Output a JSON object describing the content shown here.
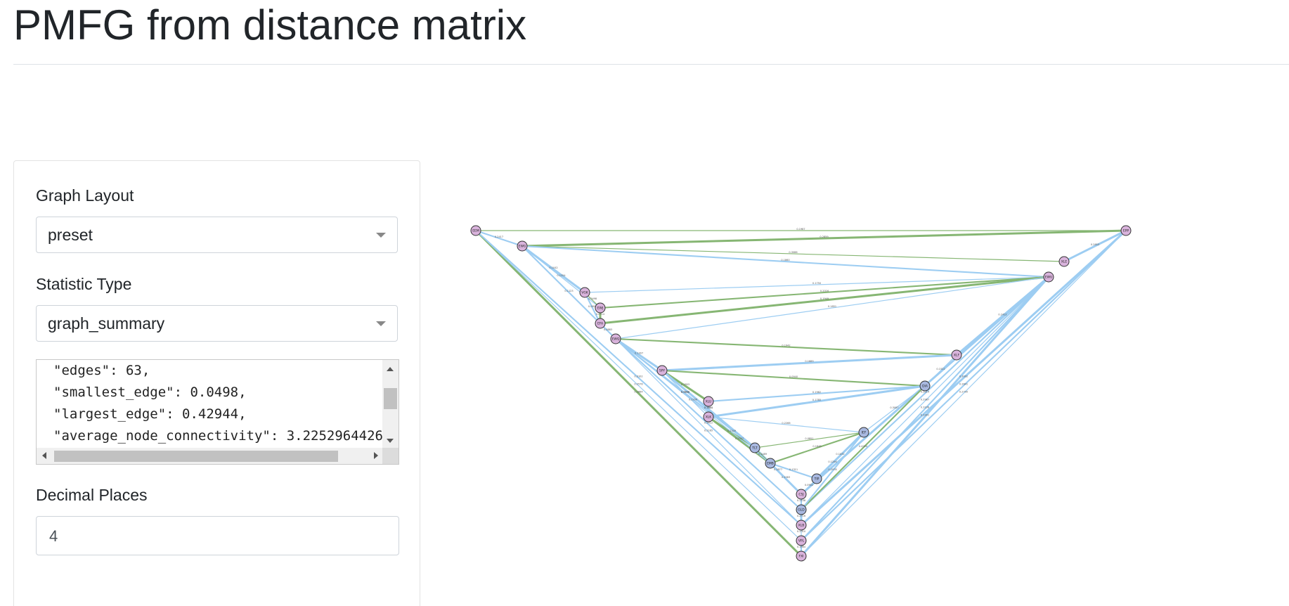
{
  "page": {
    "title": "PMFG from distance matrix"
  },
  "controls": {
    "graph_layout": {
      "label": "Graph Layout",
      "value": "preset"
    },
    "statistic_type": {
      "label": "Statistic Type",
      "value": "graph_summary"
    },
    "stats_lines": [
      "\"edges\": 63,",
      "\"smallest_edge\": 0.0498,",
      "\"largest_edge\": 0.42944,",
      "\"average_node_connectivity\": 3.2252964426"
    ],
    "decimal_places": {
      "label": "Decimal Places",
      "value": "4"
    }
  },
  "graph": {
    "colors": {
      "edge_blue": "#9dcdf2",
      "edge_green": "#86b673",
      "node_pink": "#d9b3dc",
      "node_blue": "#a8b8e0"
    },
    "nodes": [
      {
        "id": "EEM",
        "c": "pink"
      },
      {
        "id": "EWG",
        "c": "pink"
      },
      {
        "id": "EPP",
        "c": "pink"
      },
      {
        "id": "XLE",
        "c": "pink"
      },
      {
        "id": "EWU",
        "c": "pink"
      },
      {
        "id": "VGK",
        "c": "pink"
      },
      {
        "id": "EWJ",
        "c": "pink"
      },
      {
        "id": "EFA",
        "c": "pink"
      },
      {
        "id": "EWQ",
        "c": "pink"
      },
      {
        "id": "XLF",
        "c": "pink"
      },
      {
        "id": "SPY",
        "c": "pink"
      },
      {
        "id": "DIA",
        "c": "blue"
      },
      {
        "id": "XLU",
        "c": "pink"
      },
      {
        "id": "XLK",
        "c": "pink"
      },
      {
        "id": "IEF",
        "c": "blue"
      },
      {
        "id": "TLT",
        "c": "blue"
      },
      {
        "id": "EMB",
        "c": "blue"
      },
      {
        "id": "TIP",
        "c": "blue"
      },
      {
        "id": "CSJ",
        "c": "pink"
      },
      {
        "id": "GLD",
        "c": "blue"
      },
      {
        "id": "XLB",
        "c": "pink"
      },
      {
        "id": "VPL",
        "c": "pink"
      },
      {
        "id": "FXI",
        "c": "pink"
      }
    ],
    "edges": [
      {
        "s": "EEM",
        "t": "EPP",
        "w": "0.1987",
        "c": "green"
      },
      {
        "s": "EEM",
        "t": "EWG",
        "w": "0.2417",
        "c": "blue"
      },
      {
        "s": "EEM",
        "t": "FXI",
        "w": "0.2884",
        "c": "green"
      },
      {
        "s": "EEM",
        "t": "VPL",
        "w": "0.2576",
        "c": "blue"
      },
      {
        "s": "EEM",
        "t": "XLB",
        "w": "0.3102",
        "c": "blue"
      },
      {
        "s": "EWG",
        "t": "EPP",
        "w": "0.2859",
        "c": "green"
      },
      {
        "s": "EWG",
        "t": "XLE",
        "w": "0.3086",
        "c": "green"
      },
      {
        "s": "EWG",
        "t": "EWU",
        "w": "0.1860",
        "c": "blue"
      },
      {
        "s": "EWG",
        "t": "VGK",
        "w": "0.1042",
        "c": "blue"
      },
      {
        "s": "EWG",
        "t": "EWJ",
        "w": "0.1254",
        "c": "blue"
      },
      {
        "s": "EWG",
        "t": "EWQ",
        "w": "0.1123",
        "c": "blue"
      },
      {
        "s": "EPP",
        "t": "XLE",
        "w": "0.2853",
        "c": "blue"
      },
      {
        "s": "EPP",
        "t": "FXI",
        "w": "0.2790",
        "c": "blue"
      },
      {
        "s": "EPP",
        "t": "VPL",
        "w": "0.2641",
        "c": "blue"
      },
      {
        "s": "EPP",
        "t": "XLB",
        "w": "0.3002",
        "c": "blue"
      },
      {
        "s": "EWU",
        "t": "VGK",
        "w": "0.1750",
        "c": "blue"
      },
      {
        "s": "EWU",
        "t": "EWJ",
        "w": "0.2016",
        "c": "green"
      },
      {
        "s": "EWU",
        "t": "EFA",
        "w": "0.1949",
        "c": "green"
      },
      {
        "s": "EWU",
        "t": "EWQ",
        "w": "0.1851",
        "c": "blue"
      },
      {
        "s": "EWU",
        "t": "GLD",
        "w": "0.3214",
        "c": "blue"
      },
      {
        "s": "EWU",
        "t": "CSJ",
        "w": "0.3376",
        "c": "blue"
      },
      {
        "s": "VGK",
        "t": "EWJ",
        "w": "0.0498",
        "c": "green"
      },
      {
        "s": "VGK",
        "t": "EFA",
        "w": "0.0602",
        "c": "blue"
      },
      {
        "s": "EWJ",
        "t": "EFA",
        "w": "0.0714",
        "c": "green"
      },
      {
        "s": "EFA",
        "t": "EWQ",
        "w": "0.0883",
        "c": "blue"
      },
      {
        "s": "EWQ",
        "t": "XLF",
        "w": "0.1942",
        "c": "green"
      },
      {
        "s": "EWQ",
        "t": "SPY",
        "w": "0.1307",
        "c": "blue"
      },
      {
        "s": "EWQ",
        "t": "XLB",
        "w": "0.2165",
        "c": "blue"
      },
      {
        "s": "EWQ",
        "t": "GLD",
        "w": "0.2412",
        "c": "blue"
      },
      {
        "s": "XLF",
        "t": "SPY",
        "w": "0.1689",
        "c": "blue"
      },
      {
        "s": "XLF",
        "t": "DIA",
        "w": "0.1522",
        "c": "blue"
      },
      {
        "s": "SPY",
        "t": "DIA",
        "w": "0.0940",
        "c": "green"
      },
      {
        "s": "SPY",
        "t": "XLU",
        "w": "0.1803",
        "c": "green"
      },
      {
        "s": "SPY",
        "t": "XLK",
        "w": "0.1106",
        "c": "blue"
      },
      {
        "s": "DIA",
        "t": "XLU",
        "w": "0.1982",
        "c": "blue"
      },
      {
        "s": "DIA",
        "t": "XLK",
        "w": "0.1785",
        "c": "blue"
      },
      {
        "s": "DIA",
        "t": "IEF",
        "w": "0.3087",
        "c": "blue"
      },
      {
        "s": "DIA",
        "t": "GLD",
        "w": "0.4294",
        "c": "green"
      },
      {
        "s": "XLU",
        "t": "XLK",
        "w": "0.2011",
        "c": "blue"
      },
      {
        "s": "XLK",
        "t": "IEF",
        "w": "0.2266",
        "c": "blue"
      },
      {
        "s": "XLK",
        "t": "TLT",
        "w": "0.2349",
        "c": "green"
      },
      {
        "s": "XLK",
        "t": "EMB",
        "w": "0.2507",
        "c": "green"
      },
      {
        "s": "IEF",
        "t": "TLT",
        "w": "0.0891",
        "c": "green"
      },
      {
        "s": "IEF",
        "t": "EMB",
        "w": "0.1648",
        "c": "green"
      },
      {
        "s": "IEF",
        "t": "TIP",
        "w": "0.1032",
        "c": "blue"
      },
      {
        "s": "IEF",
        "t": "CSJ",
        "w": "0.1256",
        "c": "blue"
      },
      {
        "s": "IEF",
        "t": "GLD",
        "w": "0.2978",
        "c": "blue"
      },
      {
        "s": "TLT",
        "t": "EMB",
        "w": "0.1489",
        "c": "blue"
      },
      {
        "s": "TLT",
        "t": "CSJ",
        "w": "0.1877",
        "c": "green"
      },
      {
        "s": "EMB",
        "t": "TIP",
        "w": "0.1311",
        "c": "blue"
      },
      {
        "s": "EMB",
        "t": "CSJ",
        "w": "0.1583",
        "c": "blue"
      },
      {
        "s": "TIP",
        "t": "CSJ",
        "w": "0.0902",
        "c": "blue"
      },
      {
        "s": "CSJ",
        "t": "GLD",
        "w": "0.2108",
        "c": "blue"
      },
      {
        "s": "GLD",
        "t": "XLB",
        "w": "0.2716",
        "c": "blue"
      },
      {
        "s": "XLB",
        "t": "VPL",
        "w": "0.2310",
        "c": "blue"
      },
      {
        "s": "VPL",
        "t": "FXI",
        "w": "0.1984",
        "c": "blue"
      },
      {
        "s": "EWU",
        "t": "XLF",
        "w": "0.2412",
        "c": "blue"
      },
      {
        "s": "EWU",
        "t": "XLB",
        "w": "0.2987",
        "c": "blue"
      },
      {
        "s": "EWU",
        "t": "VPL",
        "w": "0.3106",
        "c": "blue"
      },
      {
        "s": "EWU",
        "t": "FXI",
        "w": "0.3301",
        "c": "blue"
      },
      {
        "s": "EWQ",
        "t": "EMB",
        "w": "0.2206",
        "c": "blue"
      },
      {
        "s": "EWQ",
        "t": "TLT",
        "w": "0.2601",
        "c": "blue"
      },
      {
        "s": "SPY",
        "t": "TLT",
        "w": "0.2404",
        "c": "blue"
      }
    ]
  }
}
